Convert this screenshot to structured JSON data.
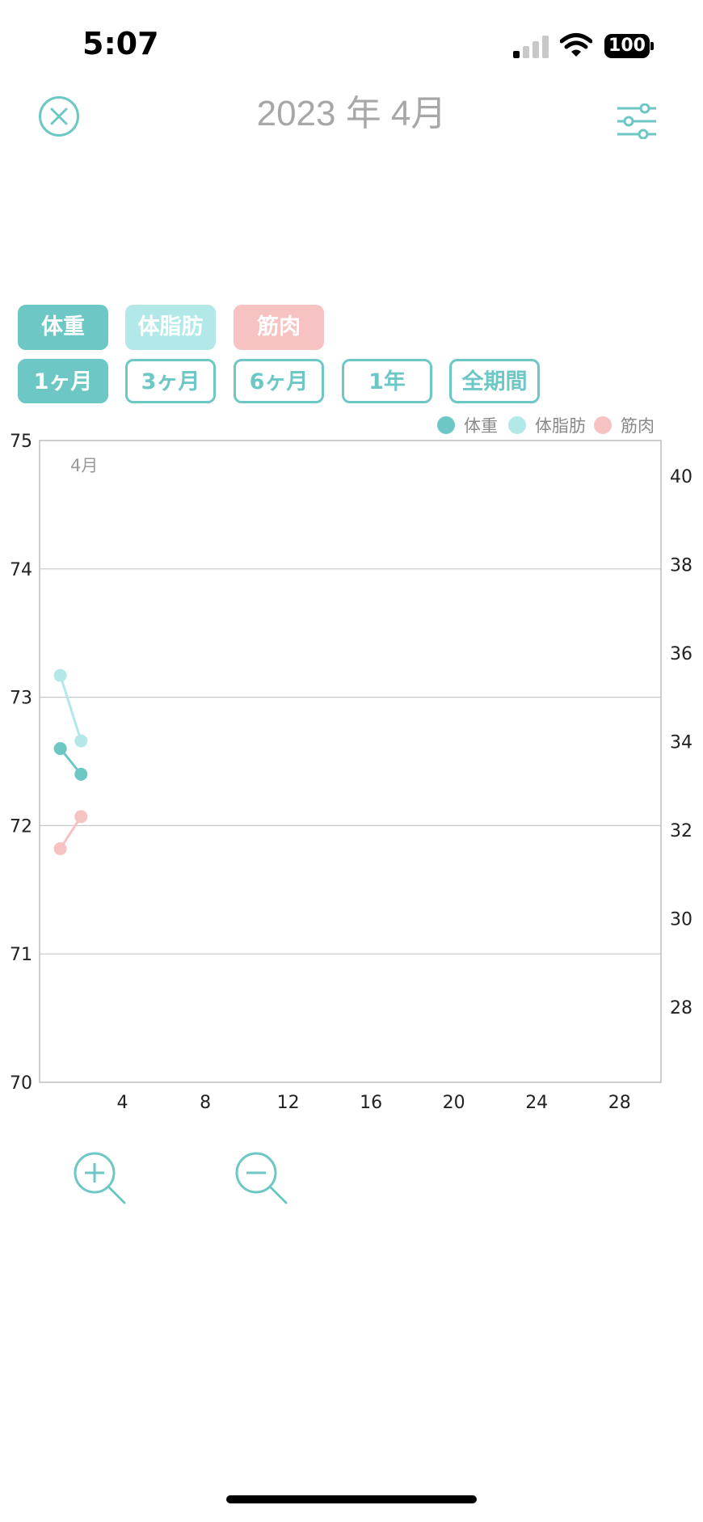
{
  "status_bar": {
    "time": "5:07",
    "battery": "100",
    "icons": [
      "signal-icon",
      "wifi-icon",
      "battery-icon"
    ]
  },
  "header": {
    "title": "2023 年 4月",
    "close_icon": "close-circle-icon",
    "filter_icon": "sliders-icon"
  },
  "metric_buttons": [
    {
      "label": "体重",
      "color": "#6cc7c5"
    },
    {
      "label": "体脂肪",
      "color": "#b3e8e8"
    },
    {
      "label": "筋肉",
      "color": "#f6c2c2"
    }
  ],
  "period_buttons": [
    {
      "label": "1ヶ月",
      "active": true
    },
    {
      "label": "3ヶ月",
      "active": false
    },
    {
      "label": "6ヶ月",
      "active": false
    },
    {
      "label": "1年",
      "active": false
    },
    {
      "label": "全期間",
      "active": false
    }
  ],
  "zoom": {
    "zoom_in_icon": "zoom-in-icon",
    "zoom_out_icon": "zoom-out-icon"
  },
  "chart_data": {
    "type": "line",
    "month_label": "4月",
    "legend": [
      {
        "name": "体重",
        "color": "#6cc7c5"
      },
      {
        "name": "体脂肪",
        "color": "#b3e8e8"
      },
      {
        "name": "筋肉",
        "color": "#f6c2c2"
      }
    ],
    "legend_position": "top-right",
    "x_ticks": [
      4,
      8,
      12,
      16,
      20,
      24,
      28
    ],
    "xlim": [
      0,
      30
    ],
    "y_left_ticks": [
      70,
      71,
      72,
      73,
      74,
      75
    ],
    "y_left_lim": [
      70,
      75
    ],
    "y_right_ticks": [
      28,
      30,
      32,
      34,
      36,
      38,
      40
    ],
    "y_right_lim": [
      26.3,
      40.8
    ],
    "grid": true,
    "series": [
      {
        "name": "体重",
        "axis": "left",
        "color": "#6cc7c5",
        "points": [
          [
            1,
            72.6
          ],
          [
            2,
            72.4
          ]
        ]
      },
      {
        "name": "体脂肪",
        "axis": "left",
        "color": "#b3e8e8",
        "points": [
          [
            1,
            73.17
          ],
          [
            2,
            72.66
          ]
        ]
      },
      {
        "name": "筋肉",
        "axis": "left",
        "color": "#f6c2c2",
        "points": [
          [
            1,
            71.82
          ],
          [
            2,
            72.07
          ]
        ]
      }
    ]
  }
}
